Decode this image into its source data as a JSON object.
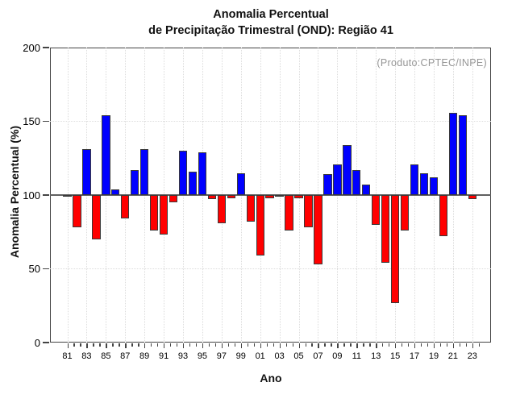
{
  "chart_data": {
    "type": "bar",
    "title_line1": "Anomalia Percentual",
    "title_line2": "de Precipitação Trimestral (OND): Região 41",
    "annotation": "(Produto:CPTEC/INPE)",
    "xlabel": "Ano",
    "ylabel": "Anomalia Percentual (%)",
    "ylim": [
      0,
      200
    ],
    "yticks": [
      0,
      50,
      100,
      150,
      200
    ],
    "baseline": 100,
    "x_label_every": 2,
    "grid": "dotted",
    "legend": "none",
    "categories": [
      "81",
      "82",
      "83",
      "84",
      "85",
      "86",
      "87",
      "88",
      "89",
      "90",
      "91",
      "92",
      "93",
      "94",
      "95",
      "96",
      "97",
      "98",
      "99",
      "00",
      "01",
      "02",
      "03",
      "04",
      "05",
      "06",
      "07",
      "08",
      "09",
      "10",
      "11",
      "12",
      "13",
      "14",
      "15",
      "16",
      "17",
      "18",
      "19",
      "20",
      "21",
      "22",
      "23"
    ],
    "values": [
      99,
      78,
      131,
      70,
      154,
      104,
      84,
      117,
      131,
      76,
      73,
      95,
      130,
      116,
      129,
      97,
      81,
      98,
      115,
      82,
      59,
      98,
      99,
      76,
      98,
      78,
      53,
      114,
      121,
      134,
      117,
      107,
      80,
      54,
      27,
      76,
      121,
      115,
      112,
      72,
      156,
      154,
      97
    ],
    "colors": {
      "above_baseline": "#0000ff",
      "below_baseline": "#ff0000",
      "bar_outline": "#3a3a3a",
      "annotation_text": "#969696",
      "gridline": "#dcdcdc",
      "axis_frame": "#444444"
    }
  }
}
